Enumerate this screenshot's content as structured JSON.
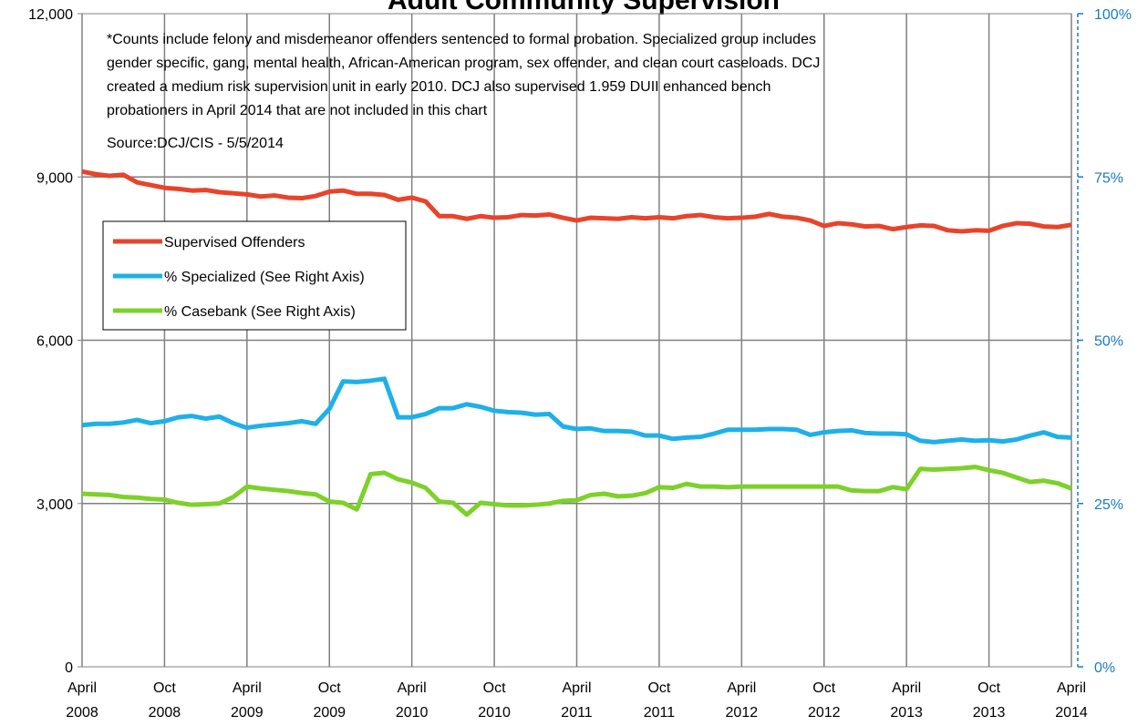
{
  "chart_data": {
    "type": "line",
    "title": "Adult Community Supervision",
    "annotation": [
      "*Counts include felony and misdemeanor offenders sentenced to formal probation.  Specialized group includes",
      "gender specific, gang, mental health, African-American program, sex offender, and clean court caseloads.  DCJ",
      "created a medium risk supervision unit in early 2010.  DCJ also supervised 1.959 DUII enhanced bench",
      "probationers in April 2014 that are not included in this chart"
    ],
    "source": "Source:DCJ/CIS - 5/5/2014",
    "categories": [
      "April 2008",
      null,
      null,
      null,
      null,
      null,
      "Oct 2008",
      null,
      null,
      null,
      null,
      null,
      "April 2009",
      null,
      null,
      null,
      null,
      null,
      "Oct 2009",
      null,
      null,
      null,
      null,
      null,
      "April 2010",
      null,
      null,
      null,
      null,
      null,
      "Oct 2010",
      null,
      null,
      null,
      null,
      null,
      "April 2011",
      null,
      null,
      null,
      null,
      null,
      "Oct 2011",
      null,
      null,
      null,
      null,
      null,
      "April 2012",
      null,
      null,
      null,
      null,
      null,
      "Oct 2012",
      null,
      null,
      null,
      null,
      null,
      "April 2013",
      null,
      null,
      null,
      null,
      null,
      "Oct 2013",
      null,
      null,
      null,
      null,
      null,
      "April 2014"
    ],
    "ylim": [
      0,
      12000
    ],
    "yticks": [
      0,
      {
        "value": 3000,
        "label": "3,000"
      },
      {
        "value": 6000,
        "label": "6,000"
      },
      {
        "value": 9000,
        "label": "9,000"
      },
      {
        "value": 12000,
        "label": "12,000"
      }
    ],
    "y2lim": [
      0,
      100
    ],
    "y2ticks": [
      {
        "value": 0,
        "label": "0%"
      },
      {
        "value": 25,
        "label": "25%"
      },
      {
        "value": 50,
        "label": "50%"
      },
      {
        "value": 75,
        "label": "75%"
      },
      {
        "value": 100,
        "label": "100%"
      }
    ],
    "grid": true,
    "legend": "upper left",
    "series": [
      {
        "name": "Supervised Offenders",
        "color": "#e8432b",
        "values": [
          9100,
          9050,
          9020,
          9040,
          8900,
          8850,
          8800,
          8780,
          8750,
          8760,
          8720,
          8700,
          8680,
          8640,
          8660,
          8620,
          8610,
          8650,
          8730,
          8750,
          8690,
          8690,
          8670,
          8580,
          8620,
          8550,
          8280,
          8280,
          8230,
          8280,
          8250,
          8260,
          8300,
          8290,
          8310,
          8250,
          8200,
          8250,
          8240,
          8230,
          8260,
          8240,
          8260,
          8240,
          8280,
          8300,
          8260,
          8240,
          8250,
          8270,
          8320,
          8270,
          8250,
          8200,
          8100,
          8150,
          8130,
          8090,
          8100,
          8040,
          8080,
          8110,
          8100,
          8020,
          8000,
          8020,
          8010,
          8100,
          8150,
          8140,
          8090,
          8080,
          8120
        ]
      },
      {
        "name": "% Specialized (See Right Axis)",
        "color": "#1eb0e8",
        "axis": "y2",
        "values": [
          37.0,
          37.2,
          37.2,
          37.4,
          37.8,
          37.3,
          37.6,
          38.2,
          38.4,
          38.0,
          38.3,
          37.3,
          36.6,
          36.9,
          37.1,
          37.3,
          37.6,
          37.2,
          39.5,
          43.7,
          43.6,
          43.8,
          44.1,
          38.2,
          38.2,
          38.7,
          39.6,
          39.6,
          40.2,
          39.8,
          39.2,
          39.0,
          38.9,
          38.6,
          38.7,
          36.8,
          36.4,
          36.5,
          36.1,
          36.1,
          36.0,
          35.4,
          35.4,
          34.9,
          35.1,
          35.2,
          35.7,
          36.3,
          36.3,
          36.3,
          36.4,
          36.4,
          36.3,
          35.5,
          35.9,
          36.1,
          36.2,
          35.8,
          35.7,
          35.7,
          35.6,
          34.6,
          34.4,
          34.6,
          34.8,
          34.6,
          34.7,
          34.5,
          34.8,
          35.4,
          35.9,
          35.2,
          35.1
        ]
      },
      {
        "name": "% Casebank (See Right Axis)",
        "color": "#7dd12a",
        "axis": "y2",
        "values": [
          26.5,
          26.4,
          26.3,
          26.0,
          25.9,
          25.7,
          25.6,
          25.1,
          24.8,
          24.9,
          25.0,
          26.0,
          27.6,
          27.3,
          27.1,
          26.9,
          26.6,
          26.4,
          25.3,
          25.1,
          24.1,
          29.5,
          29.7,
          28.7,
          28.2,
          27.4,
          25.3,
          25.1,
          23.3,
          25.1,
          24.9,
          24.7,
          24.7,
          24.8,
          25.0,
          25.4,
          25.5,
          26.3,
          26.5,
          26.1,
          26.2,
          26.6,
          27.5,
          27.4,
          28.0,
          27.6,
          27.6,
          27.5,
          27.6,
          27.6,
          27.6,
          27.6,
          27.6,
          27.6,
          27.6,
          27.6,
          27.0,
          26.9,
          26.9,
          27.5,
          27.2,
          30.3,
          30.2,
          30.3,
          30.4,
          30.6,
          30.1,
          29.7,
          29.0,
          28.3,
          28.5,
          28.1,
          27.3
        ]
      }
    ]
  }
}
